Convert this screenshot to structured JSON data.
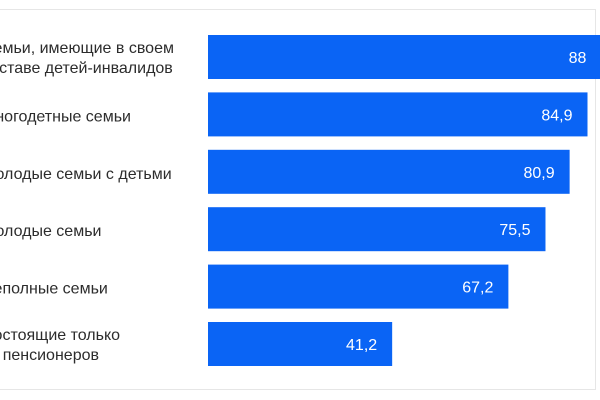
{
  "colors": {
    "bar": "#0a64f5",
    "label": "#2c2c2c",
    "value_label": "#ffffff",
    "frame": "#e6e6e6"
  },
  "chart_data": {
    "type": "bar",
    "orientation": "horizontal",
    "categories": [
      [
        "Семьи, имеющие в своем",
        "составе детей-инвалидов"
      ],
      [
        "Многодетные семьи"
      ],
      [
        "Молодые семьи с детьми"
      ],
      [
        "Молодые семьи"
      ],
      [
        "Неполные семьи"
      ],
      [
        "Состоящие только",
        "из пенсионеров"
      ]
    ],
    "values": [
      88,
      84.9,
      80.9,
      75.5,
      67.2,
      41.2
    ],
    "value_labels": [
      "88",
      "84,9",
      "80,9",
      "75,5",
      "67,2",
      "41,2"
    ],
    "xlim": [
      0,
      100
    ],
    "grid": false,
    "legend": false
  }
}
